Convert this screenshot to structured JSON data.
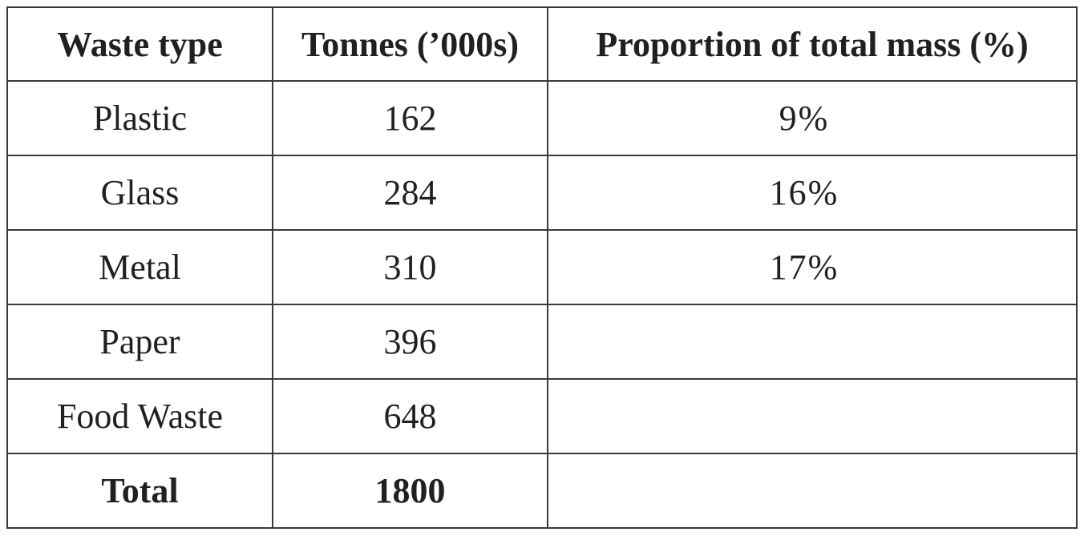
{
  "table": {
    "header": [
      "Waste type",
      "Tonnes (’000s)",
      "Proportion of total mass (%)"
    ],
    "rows": [
      [
        "Plastic",
        "162",
        "9%"
      ],
      [
        "Glass",
        "284",
        "16%"
      ],
      [
        "Metal",
        "310",
        "17%"
      ],
      [
        "Paper",
        "396"
      ],
      [
        "Food Waste",
        "648"
      ]
    ],
    "total": [
      "Total",
      "1800"
    ]
  }
}
